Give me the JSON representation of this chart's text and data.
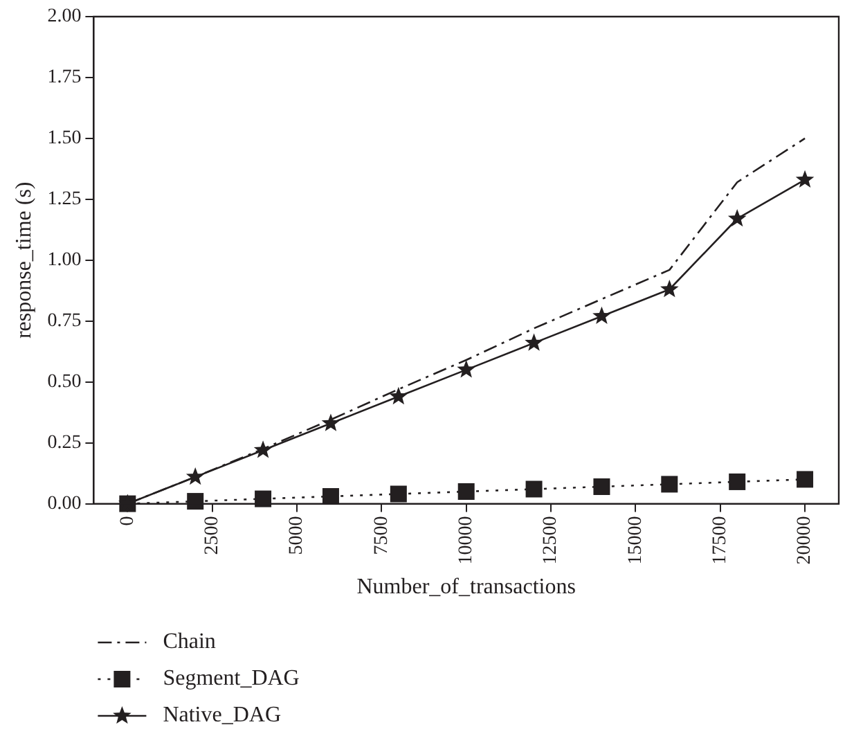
{
  "chart_data": {
    "type": "line",
    "xlabel": "Number_of_transactions",
    "ylabel": "response_time (s)",
    "x": [
      0,
      2000,
      4000,
      6000,
      8000,
      10000,
      12000,
      14000,
      16000,
      18000,
      20000
    ],
    "series": [
      {
        "name": "Chain",
        "color": "#231f20",
        "values": [
          0,
          0.11,
          0.225,
          0.345,
          0.47,
          0.59,
          0.72,
          0.84,
          0.96,
          1.32,
          1.5
        ],
        "marker": "none",
        "line_style": "dashed"
      },
      {
        "name": "Segment_DAG",
        "color": "#231f20",
        "values": [
          0,
          0.01,
          0.02,
          0.03,
          0.04,
          0.05,
          0.06,
          0.07,
          0.08,
          0.09,
          0.1
        ],
        "marker": "square",
        "line_style": "dotted"
      },
      {
        "name": "Native_DAG",
        "color": "#231f20",
        "values": [
          0,
          0.11,
          0.22,
          0.33,
          0.44,
          0.55,
          0.66,
          0.77,
          0.88,
          1.17,
          1.33
        ],
        "marker": "star",
        "line_style": "solid"
      }
    ],
    "xlim": [
      -1000,
      21000
    ],
    "xticks": [
      0,
      2500,
      5000,
      7500,
      10000,
      12500,
      15000,
      17500,
      20000
    ],
    "ylim": [
      0,
      2
    ],
    "yticks": [
      {
        "value": 0,
        "label": "0.00"
      },
      {
        "value": 0.25,
        "label": "0.25"
      },
      {
        "value": 0.5,
        "label": "0.50"
      },
      {
        "value": 0.75,
        "label": "0.75"
      },
      {
        "value": 1,
        "label": "1.00"
      },
      {
        "value": 1.25,
        "label": "1.25"
      },
      {
        "value": 1.5,
        "label": "1.50"
      },
      {
        "value": 1.75,
        "label": "1.75"
      },
      {
        "value": 2,
        "label": "2.00"
      }
    ],
    "grid": false,
    "legend": "bottom left"
  }
}
